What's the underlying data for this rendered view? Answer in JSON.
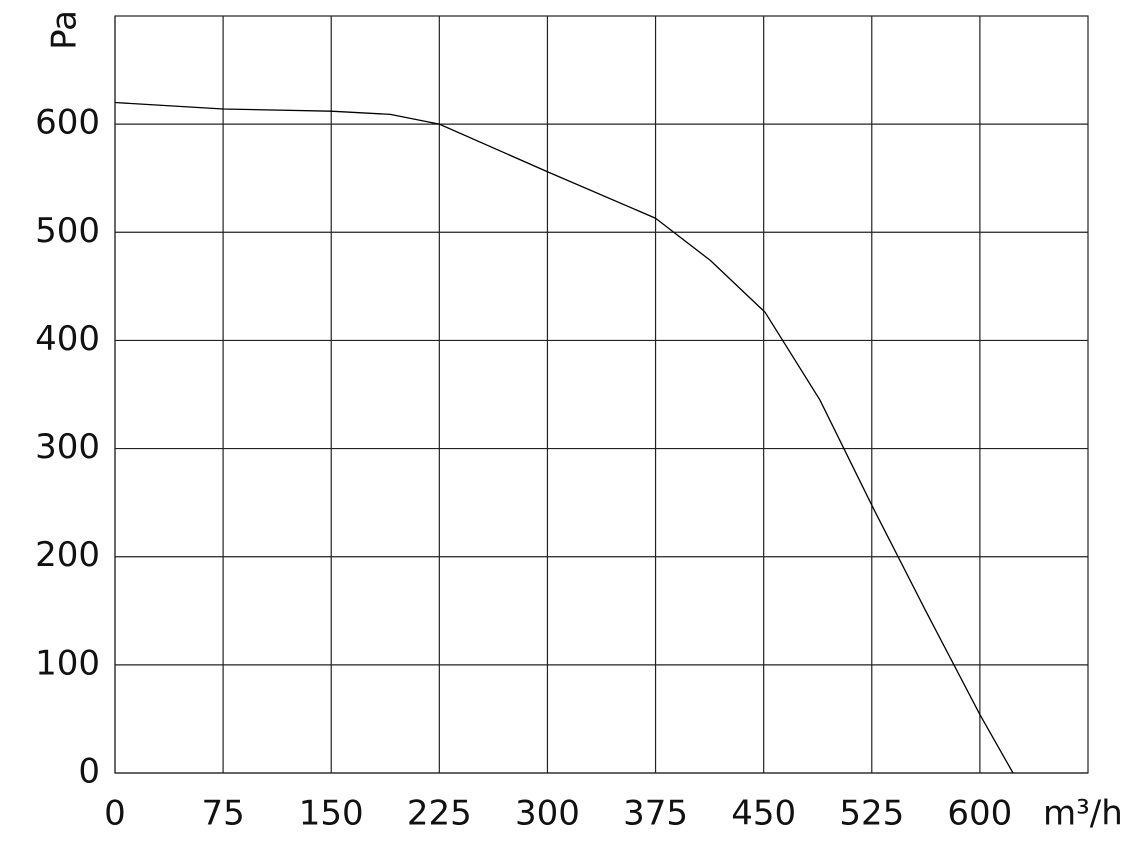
{
  "chart_data": {
    "type": "line",
    "x_label": "m³/h",
    "y_label": "Pa",
    "x": [
      0,
      75,
      150,
      191,
      225,
      300,
      375,
      413,
      451,
      489,
      526,
      562,
      600,
      623
    ],
    "series": [
      {
        "color": "#000000",
        "values": [
          620,
          614,
          612,
          609,
          600,
          556,
          513,
          474,
          426,
          345,
          245,
          151,
          54,
          0
        ]
      }
    ],
    "xlim": [
      0,
      675
    ],
    "xticks": [
      0,
      75,
      150,
      225,
      300,
      375,
      450,
      525,
      600
    ],
    "ylim": [
      0,
      700
    ],
    "yticks": [
      0,
      100,
      200,
      300,
      400,
      500,
      600
    ],
    "grid": true
  }
}
